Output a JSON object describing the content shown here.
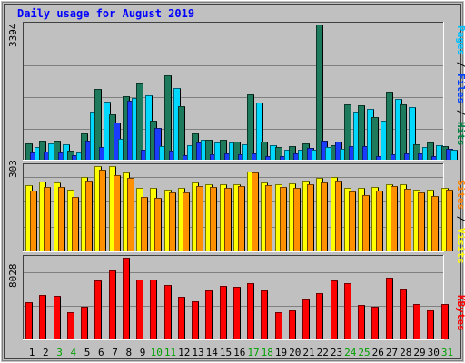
{
  "chart_data": {
    "type": "bar",
    "title": "Daily usage for August 2019",
    "categories": [
      "1",
      "2",
      "3",
      "4",
      "5",
      "6",
      "7",
      "8",
      "9",
      "10",
      "11",
      "12",
      "13",
      "14",
      "15",
      "16",
      "17",
      "18",
      "19",
      "20",
      "21",
      "22",
      "23",
      "24",
      "25",
      "26",
      "27",
      "28",
      "29",
      "30",
      "31"
    ],
    "weekend_days": [
      "3",
      "4",
      "10",
      "11",
      "17",
      "18",
      "24",
      "25",
      "31"
    ],
    "panels": [
      {
        "name": "hits_files_pages",
        "max_label": "3394",
        "ylim": [
          0,
          3394
        ],
        "side_label": [
          {
            "text": "Pages",
            "color": "#00c0ff"
          },
          {
            "text": " / ",
            "color": "#000000"
          },
          {
            "text": "Files",
            "color": "#0040ff"
          },
          {
            "text": " / ",
            "color": "#000000"
          },
          {
            "text": "Hits",
            "color": "#008040"
          }
        ],
        "series": [
          {
            "name": "Hits",
            "color": "#1e7a5c",
            "values": [
              400,
              480,
              470,
              220,
              670,
              1780,
              1150,
              1600,
              1920,
              970,
              2120,
              1340,
              670,
              490,
              490,
              450,
              1650,
              450,
              320,
              340,
              410,
              3394,
              360,
              1380,
              1370,
              1080,
              1700,
              1380,
              380,
              430,
              340
            ]
          },
          {
            "name": "Files",
            "color": "#1a3cff",
            "values": [
              180,
              200,
              190,
              120,
              480,
              320,
              940,
              1480,
              250,
              800,
              220,
              110,
              440,
              130,
              160,
              130,
              170,
              100,
              90,
              150,
              300,
              470,
              450,
              350,
              350,
              100,
              140,
              170,
              150,
              100,
              270
            ]
          },
          {
            "name": "Pages",
            "color": "#00d8ff",
            "values": [
              320,
              400,
              390,
              180,
              1200,
              1450,
              520,
              1550,
              1620,
              340,
              1800,
              360,
              510,
              440,
              430,
              380,
              1440,
              370,
              250,
              250,
              250,
              330,
              270,
              1200,
              1280,
              970,
              1520,
              1320,
              310,
              360,
              250
            ]
          }
        ]
      },
      {
        "name": "visits_sites",
        "max_label": "303",
        "ylim": [
          0,
          303
        ],
        "side_label": [
          {
            "text": "Sites",
            "color": "#ff8000"
          },
          {
            "text": " / ",
            "color": "#000000"
          },
          {
            "text": "Visits",
            "color": "#ffff00"
          }
        ],
        "series": [
          {
            "name": "Visits",
            "color": "#ffff00",
            "values": [
              235,
              248,
              245,
              218,
              265,
              303,
              303,
              280,
              225,
              225,
              220,
              225,
              245,
              240,
              238,
              240,
              285,
              245,
              240,
              242,
              250,
              262,
              265,
              225,
              225,
              230,
              240,
              240,
              220,
              218,
              227
            ]
          },
          {
            "name": "Sites",
            "color": "#ff9000",
            "values": [
              216,
              230,
              230,
              195,
              252,
              290,
              272,
              260,
              195,
              190,
              210,
              210,
              232,
              228,
              225,
              232,
              282,
              234,
              228,
              225,
              237,
              245,
              250,
              212,
              200,
              217,
              232,
              223,
              208,
              198,
              220
            ]
          }
        ]
      },
      {
        "name": "kbytes",
        "max_label": "8028",
        "ylim": [
          0,
          8028
        ],
        "side_label": [
          {
            "text": "KBytes",
            "color": "#ff0000"
          }
        ],
        "series": [
          {
            "name": "KBytes",
            "color": "#ff0000",
            "values": [
              3680,
              4330,
              4320,
              2690,
              3180,
              5760,
              6800,
              8028,
              5880,
              5850,
              5390,
              4230,
              3780,
              4840,
              5260,
              5130,
              5510,
              4840,
              2640,
              2880,
              3940,
              4560,
              5760,
              5540,
              3400,
              3250,
              6100,
              4950,
              3460,
              2870,
              3490
            ]
          }
        ]
      }
    ]
  },
  "colors": {
    "background": "#c0c0c0",
    "title": "#0000ff",
    "weekday_label": "#000000",
    "weekend_label": "#00a000"
  }
}
